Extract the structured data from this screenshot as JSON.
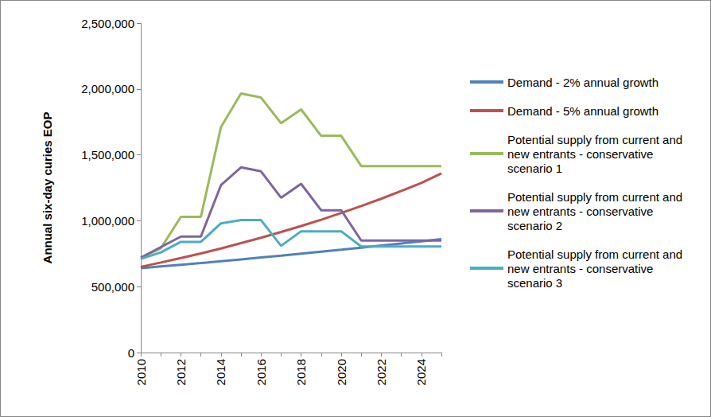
{
  "chart_data": {
    "type": "line",
    "y_label": "Annual six-day curies EOP",
    "categories": [
      "2010",
      null,
      "2012",
      null,
      "2014",
      null,
      "2016",
      null,
      "2018",
      null,
      "2020",
      null,
      "2022",
      null,
      "2024",
      null
    ],
    "series": [
      {
        "name": "Demand - 2% annual growth",
        "color": "#4f81bd",
        "values": [
          640000,
          653000,
          666000,
          679000,
          693000,
          707000,
          721000,
          735000,
          750000,
          765000,
          780000,
          796000,
          812000,
          828000,
          844000,
          861000
        ]
      },
      {
        "name": "Demand - 5% annual growth",
        "color": "#c0504d",
        "values": [
          650000,
          683000,
          717000,
          752000,
          790000,
          830000,
          871000,
          915000,
          960000,
          1008000,
          1059000,
          1112000,
          1167000,
          1226000,
          1287000,
          1360000
        ]
      },
      {
        "name": "Potential supply from current and new entrants - conservative scenario 1",
        "color": "#9bbb59",
        "values": [
          720000,
          790000,
          1030000,
          1030000,
          1710000,
          1965000,
          1935000,
          1740000,
          1845000,
          1645000,
          1645000,
          1415000,
          1415000,
          1415000,
          1415000,
          1415000
        ]
      },
      {
        "name": "Potential supply from current and new entrants - conservative scenario 2",
        "color": "#8064a2",
        "values": [
          720000,
          800000,
          880000,
          880000,
          1270000,
          1405000,
          1375000,
          1175000,
          1280000,
          1080000,
          1080000,
          850000,
          850000,
          850000,
          850000,
          850000
        ]
      },
      {
        "name": "Potential supply from current and new entrants - conservative scenario 3",
        "color": "#4bacc6",
        "values": [
          710000,
          760000,
          840000,
          840000,
          980000,
          1005000,
          1005000,
          810000,
          920000,
          920000,
          920000,
          805000,
          805000,
          805000,
          805000,
          805000
        ]
      }
    ],
    "ylim": [
      0,
      2500000
    ],
    "yticks": [
      0,
      {
        "value": 500000,
        "label": "500,000"
      },
      {
        "value": 1000000,
        "label": "1,000,000"
      },
      {
        "value": 1500000,
        "label": "1,500,000"
      },
      {
        "value": 2000000,
        "label": "2,000,000"
      },
      {
        "value": 2500000,
        "label": "2,500,000"
      }
    ],
    "grid": false,
    "legend": "right",
    "marker": "none"
  }
}
